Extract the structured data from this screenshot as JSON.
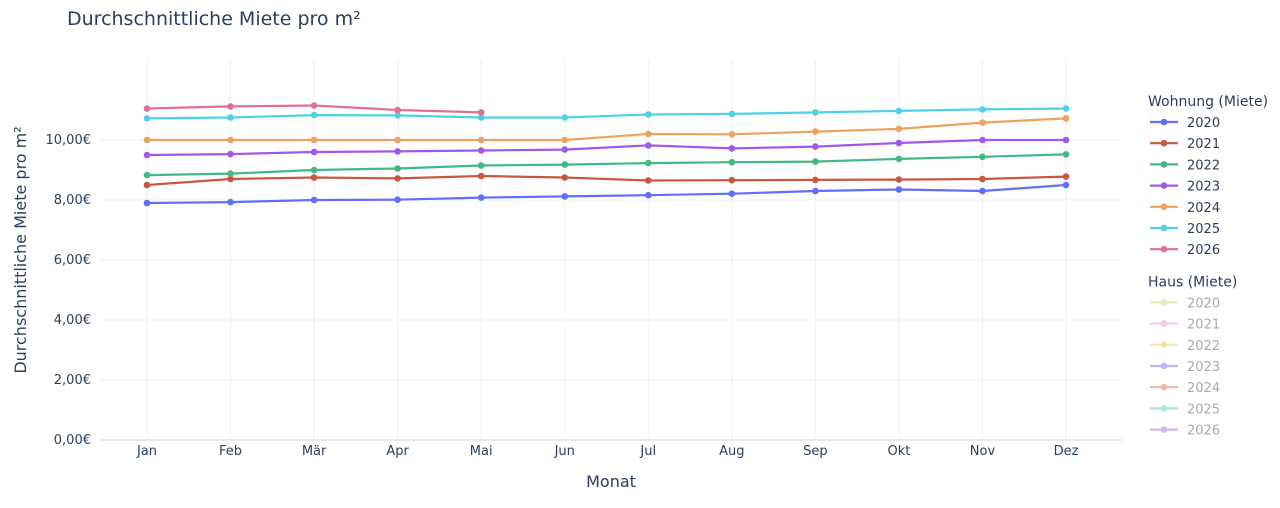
{
  "chart_data": {
    "type": "line",
    "title": "Durchschnittliche Miete pro m²",
    "xlabel": "Monat",
    "ylabel": "Durchschnittliche Miete pro m²",
    "categories": [
      "Jan",
      "Feb",
      "Mär",
      "Apr",
      "Mai",
      "Jun",
      "Jul",
      "Aug",
      "Sep",
      "Okt",
      "Nov",
      "Dez"
    ],
    "ylim": [
      0,
      11.5
    ],
    "yticks": [
      0,
      2,
      4,
      6,
      8,
      10
    ],
    "ytick_labels": [
      "0,00€",
      "2,00€",
      "4,00€",
      "6,00€",
      "8,00€",
      "10,00€"
    ],
    "grid": true,
    "legend_position": "right",
    "legend_groups": [
      {
        "title": "Wohnung (Miete)",
        "series": [
          {
            "name": "2020",
            "color": "#636efa",
            "visible": true,
            "values": [
              7.9,
              7.93,
              8.0,
              8.01,
              8.08,
              8.12,
              8.16,
              8.21,
              8.3,
              8.35,
              8.3,
              8.5
            ]
          },
          {
            "name": "2021",
            "color": "#c9563f",
            "visible": true,
            "values": [
              8.5,
              8.7,
              8.75,
              8.72,
              8.8,
              8.75,
              8.65,
              8.66,
              8.67,
              8.68,
              8.7,
              8.78
            ]
          },
          {
            "name": "2022",
            "color": "#42b883",
            "visible": true,
            "values": [
              8.83,
              8.88,
              9.0,
              9.05,
              9.15,
              9.18,
              9.23,
              9.26,
              9.28,
              9.37,
              9.44,
              9.52
            ]
          },
          {
            "name": "2023",
            "color": "#a158e8",
            "visible": true,
            "values": [
              9.5,
              9.53,
              9.6,
              9.62,
              9.65,
              9.68,
              9.82,
              9.72,
              9.78,
              9.9,
              10.0,
              10.0
            ]
          },
          {
            "name": "2024",
            "color": "#efa15f",
            "visible": true,
            "values": [
              10.0,
              10.0,
              10.0,
              10.0,
              10.0,
              10.0,
              10.2,
              10.19,
              10.28,
              10.37,
              10.58,
              10.72
            ]
          },
          {
            "name": "2025",
            "color": "#4fd0e8",
            "visible": true,
            "values": [
              10.72,
              10.75,
              10.83,
              10.82,
              10.75,
              10.75,
              10.85,
              10.87,
              10.92,
              10.97,
              11.02,
              11.05
            ]
          },
          {
            "name": "2026",
            "color": "#e0718f",
            "visible": true,
            "values": [
              11.05,
              11.12,
              11.15,
              11.0,
              10.92,
              null,
              null,
              null,
              null,
              null,
              null,
              null
            ]
          }
        ]
      },
      {
        "title": "Haus (Miete)",
        "series": [
          {
            "name": "2020",
            "color": "#dfeeba",
            "visible": false,
            "values": []
          },
          {
            "name": "2021",
            "color": "#f2c8ef",
            "visible": false,
            "values": []
          },
          {
            "name": "2022",
            "color": "#f8e6a8",
            "visible": false,
            "values": []
          },
          {
            "name": "2023",
            "color": "#b7b9f2",
            "visible": false,
            "values": []
          },
          {
            "name": "2024",
            "color": "#f0b9a6",
            "visible": false,
            "values": []
          },
          {
            "name": "2025",
            "color": "#a9e8d2",
            "visible": false,
            "values": []
          },
          {
            "name": "2026",
            "color": "#d6b5ee",
            "visible": false,
            "values": []
          }
        ]
      }
    ]
  }
}
